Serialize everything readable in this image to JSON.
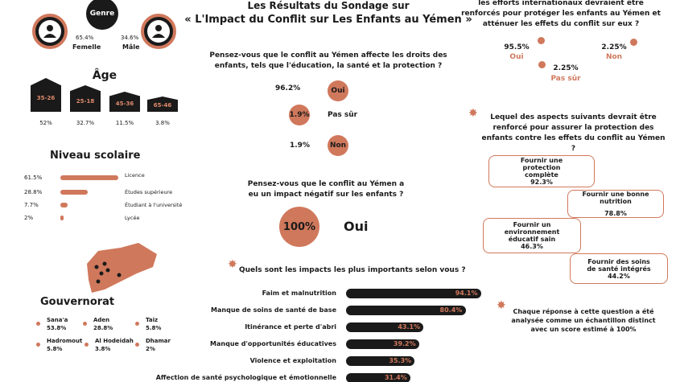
{
  "header": {
    "title_line1": "Les Résultats du Sondage sur",
    "title_line2": "« L'Impact du Conflit sur Les Enfants au Yémen »"
  },
  "gender": {
    "title": "Genre",
    "items": [
      {
        "label": "Femelle",
        "percent": "65.4%"
      },
      {
        "label": "Mâle",
        "percent": "34.6%"
      }
    ]
  },
  "age": {
    "title": "Âge",
    "groups": [
      {
        "range": "35-26",
        "percent": "52%"
      },
      {
        "range": "25-18",
        "percent": "32.7%"
      },
      {
        "range": "45-36",
        "percent": "11.5%"
      },
      {
        "range": "65-46",
        "percent": "3.8%"
      }
    ]
  },
  "education": {
    "title": "Niveau scolaire",
    "items": [
      {
        "label": "Licence",
        "value": 61.5,
        "value_label": "61.5%"
      },
      {
        "label": "Études supérieure",
        "value": 28.8,
        "value_label": "28.8%"
      },
      {
        "label": "Étudiant à l'université",
        "value": 7.7,
        "value_label": "7.7%"
      },
      {
        "label": "Lycée",
        "value": 2,
        "value_label": "2%"
      }
    ]
  },
  "governorate": {
    "title": "Gouvernorat",
    "items": [
      {
        "name": "Sana'a",
        "percent": "53.8%"
      },
      {
        "name": "Aden",
        "percent": "28.8%"
      },
      {
        "name": "Taiz",
        "percent": "5.8%"
      },
      {
        "name": "Hadromout",
        "percent": "5.8%"
      },
      {
        "name": "Al Hodeidah",
        "percent": "3.8%"
      },
      {
        "name": "Dhamar",
        "percent": "2%"
      }
    ]
  },
  "q_rights": {
    "question": "Pensez-vous que le conflit au Yémen affecte les droits des enfants, tels que l'éducation, la santé et la protection ?",
    "answers": [
      {
        "percent": "96.2%",
        "label": "Oui"
      },
      {
        "percent": "1.9%",
        "label": "Pas sûr"
      },
      {
        "percent": "1.9%",
        "label": "Non"
      }
    ]
  },
  "q_impact": {
    "question": "Pensez-vous que le conflit au Yémen a eu un impact négatif sur les enfants ?",
    "percent": "100%",
    "answer": "Oui"
  },
  "q_main_impacts": {
    "question": "Quels sont les impacts les plus importants selon vous ?",
    "items": [
      {
        "label": "Faim et malnutrition",
        "value": 94.1,
        "value_label": "94.1%"
      },
      {
        "label": "Manque de soins de santé de base",
        "value": 80.4,
        "value_label": "80.4%"
      },
      {
        "label": "Itinérance et perte d'abri",
        "value": 43.1,
        "value_label": "43.1%"
      },
      {
        "label": "Manque d'opportunités éducatives",
        "value": 39.2,
        "value_label": "39.2%"
      },
      {
        "label": "Violence et exploitation",
        "value": 35.3,
        "value_label": "35.3%"
      },
      {
        "label": "Affection de santé psychologique et émotionnelle",
        "value": 31.4,
        "value_label": "31.4%"
      }
    ]
  },
  "q_international": {
    "question": "les efforts internationaux devraient être renforcés pour protéger les enfants au Yémen et atténuer les effets du conflit sur eux ?",
    "answers": [
      {
        "percent": "95.5%",
        "label": "Oui"
      },
      {
        "percent": "2.25%",
        "label": "Non"
      },
      {
        "percent": "2.25%",
        "label": "Pas sûr"
      }
    ]
  },
  "q_aspects": {
    "question": "Lequel des aspects suivants devrait être renforcé pour assurer la protection des enfants contre les effets du conflit au Yémen ?",
    "items": [
      {
        "label": "Fournir une protection complète",
        "percent": "92.3%"
      },
      {
        "label": "Fournir une bonne nutrition",
        "percent": "78.8%"
      },
      {
        "label": "Fournir un environnement éducatif sain",
        "percent": "46.3%"
      },
      {
        "label": "Fournir des soins de santé intégrés",
        "percent": "44.2%"
      }
    ],
    "note": "Chaque réponse à cette question a été analysée comme un échantillon distinct avec un score estimé à 100%"
  }
}
